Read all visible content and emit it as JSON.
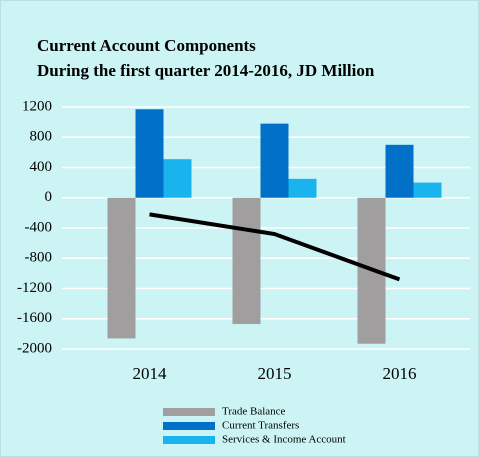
{
  "chart_data": {
    "type": "bar",
    "title": [
      "Current Account Components",
      "During the first quarter 2014-2016, JD Million"
    ],
    "categories": [
      "2014",
      "2015",
      "2016"
    ],
    "series": [
      {
        "name": "Trade Balance",
        "color": "#a09e9e",
        "values": [
          -1860,
          -1670,
          -1930
        ]
      },
      {
        "name": "Current Transfers",
        "color": "#0070c8",
        "values": [
          1170,
          980,
          700
        ]
      },
      {
        "name": "Services & Income Account",
        "color": "#19b4ee",
        "values": [
          510,
          250,
          200
        ]
      },
      {
        "type": "line",
        "color": "#000000",
        "values": [
          -220,
          -480,
          -1080
        ]
      }
    ],
    "ylim": [
      -2000,
      1200
    ],
    "yticks": [
      1200,
      800,
      400,
      0,
      -400,
      -800,
      -1200,
      -1600,
      -2000
    ],
    "grid": true,
    "legend": "bottom"
  }
}
